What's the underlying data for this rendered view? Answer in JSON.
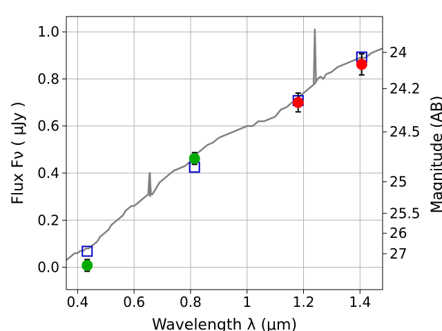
{
  "chart_data": {
    "type": "scatter",
    "xlabel": "Wavelength  λ (μm)",
    "ylabel": "Flux  Fν  ( μJy )",
    "ylabel_right": "Magnitude (AB)",
    "xlim": [
      0.36,
      1.48
    ],
    "ylim": [
      -0.095,
      1.065
    ],
    "grid": true,
    "x_ticks": [
      0.4,
      0.6,
      0.8,
      1.0,
      1.2,
      1.4
    ],
    "x_tick_labels": [
      "0.4",
      "0.6",
      "0.8",
      "1",
      "1.2",
      "1.4"
    ],
    "y_ticks": [
      0.0,
      0.2,
      0.4,
      0.6,
      0.8,
      1.0
    ],
    "y_tick_labels": [
      "0.0",
      "0.2",
      "0.4",
      "0.6",
      "0.8",
      "1.0"
    ],
    "right_ticks": [
      {
        "flux": 0.9128,
        "label": "24"
      },
      {
        "flux": 0.7586,
        "label": "24.2"
      },
      {
        "flux": 0.5754,
        "label": "24.5"
      },
      {
        "flux": 0.3631,
        "label": "25"
      },
      {
        "flux": 0.2291,
        "label": "25.5"
      },
      {
        "flux": 0.1445,
        "label": "26"
      },
      {
        "flux": 0.0575,
        "label": "27"
      }
    ],
    "colors": {
      "spectrum": "#808080",
      "model_photometry": "#0000cc",
      "observed_nir": "#ff0000",
      "observed_optical": "#00aa00",
      "errorbar": "#000000",
      "grid": "#b0b0b0"
    },
    "series": [
      {
        "kind": "spectrum",
        "x": [
          0.36,
          0.37,
          0.38,
          0.39,
          0.4,
          0.41,
          0.42,
          0.43,
          0.44,
          0.45,
          0.46,
          0.47,
          0.48,
          0.49,
          0.5,
          0.51,
          0.52,
          0.53,
          0.54,
          0.55,
          0.56,
          0.57,
          0.58,
          0.59,
          0.6,
          0.61,
          0.62,
          0.63,
          0.64,
          0.65,
          0.655,
          0.66,
          0.665,
          0.67,
          0.68,
          0.69,
          0.7,
          0.72,
          0.74,
          0.76,
          0.78,
          0.8,
          0.82,
          0.84,
          0.86,
          0.88,
          0.9,
          0.92,
          0.94,
          0.96,
          0.98,
          1.0,
          1.02,
          1.04,
          1.06,
          1.08,
          1.1,
          1.12,
          1.14,
          1.16,
          1.18,
          1.2,
          1.22,
          1.24,
          1.25,
          1.26,
          1.27,
          1.28,
          1.3,
          1.32,
          1.34,
          1.36,
          1.38,
          1.4,
          1.42,
          1.44,
          1.46,
          1.48
        ],
        "y": [
          0.03,
          0.04,
          0.05,
          0.06,
          0.06,
          0.07,
          0.07,
          0.08,
          0.08,
          0.09,
          0.1,
          0.11,
          0.13,
          0.14,
          0.15,
          0.16,
          0.18,
          0.19,
          0.2,
          0.21,
          0.22,
          0.24,
          0.25,
          0.26,
          0.26,
          0.27,
          0.28,
          0.29,
          0.3,
          0.31,
          0.4,
          0.31,
          0.31,
          0.32,
          0.34,
          0.36,
          0.37,
          0.39,
          0.41,
          0.42,
          0.43,
          0.45,
          0.48,
          0.5,
          0.52,
          0.53,
          0.55,
          0.56,
          0.57,
          0.58,
          0.59,
          0.6,
          0.6,
          0.62,
          0.62,
          0.63,
          0.64,
          0.67,
          0.68,
          0.7,
          0.72,
          0.74,
          0.76,
          0.78,
          0.8,
          0.81,
          0.8,
          0.82,
          0.83,
          0.85,
          0.86,
          0.87,
          0.88,
          0.89,
          0.89,
          0.91,
          0.92,
          0.93
        ]
      },
      {
        "kind": "spectral-line",
        "x": [
          0.6555,
          0.6565,
          0.6575
        ],
        "y": [
          0.3,
          0.4,
          0.3
        ]
      },
      {
        "kind": "spectral-line",
        "x": [
          1.236,
          1.24,
          1.244
        ],
        "y": [
          0.78,
          1.01,
          0.79
        ]
      },
      {
        "kind": "model_photometry",
        "x": [
          0.434,
          0.814,
          1.181,
          1.406
        ],
        "y": [
          0.068,
          0.425,
          0.708,
          0.893
        ]
      },
      {
        "kind": "observed_optical",
        "x": [
          0.434,
          0.814
        ],
        "y": [
          0.008,
          0.462
        ],
        "yerr": [
          0.025,
          0.025
        ]
      },
      {
        "kind": "observed_nir",
        "x": [
          1.181,
          1.406
        ],
        "y": [
          0.7,
          0.862
        ],
        "yerr": [
          0.04,
          0.045
        ]
      }
    ]
  }
}
